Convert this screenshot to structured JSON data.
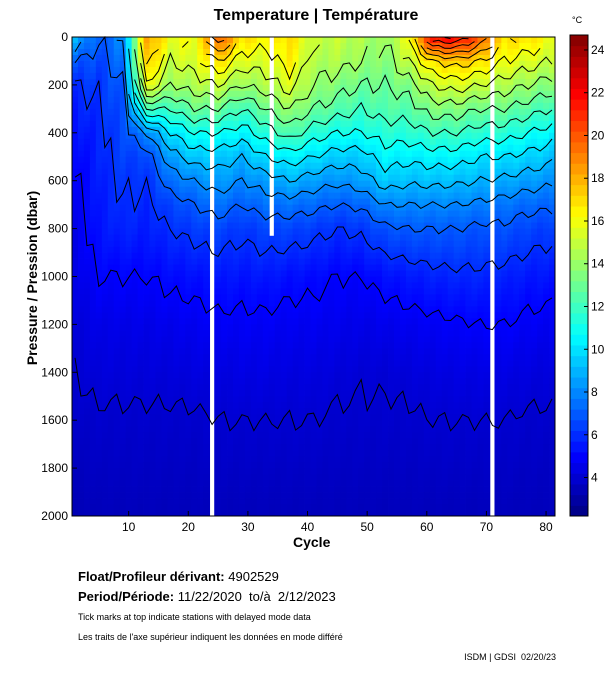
{
  "chart_data": {
    "type": "heatmap",
    "title": "Temperature | Température",
    "xlabel": "Cycle",
    "ylabel": "Pressure / Pression (dbar)",
    "colorbar_label": "°C",
    "xlim": [
      0.5,
      81.5
    ],
    "ylim": [
      2000,
      0
    ],
    "xticks": [
      10,
      20,
      30,
      40,
      50,
      60,
      70,
      80
    ],
    "yticks": [
      0,
      200,
      400,
      600,
      800,
      1000,
      1200,
      1400,
      1600,
      1800,
      2000
    ],
    "colorbar_range": [
      2.2,
      24.7
    ],
    "colorbar_ticks": [
      4,
      6,
      8,
      10,
      12,
      14,
      16,
      18,
      20,
      22,
      24
    ],
    "colormap": "jet",
    "contour_interval": 1,
    "missing_cycles": [
      {
        "cycle": 24,
        "max_depth": 2000
      },
      {
        "cycle": 34,
        "max_depth": 830
      },
      {
        "cycle": 71,
        "max_depth": 2000
      }
    ],
    "depths": [
      0,
      100,
      200,
      300,
      400,
      500,
      600,
      700,
      800,
      1000,
      1200,
      1400,
      1600,
      2000
    ],
    "cycles": [
      1,
      5,
      9,
      13,
      17,
      21,
      25,
      29,
      33,
      37,
      41,
      45,
      49,
      53,
      57,
      61,
      65,
      69,
      73,
      77,
      81
    ],
    "temperature": [
      [
        9,
        7,
        6,
        5.6,
        5.3,
        5,
        4.8,
        4.7,
        4.6,
        4.4,
        4.2,
        4,
        3.8,
        3.4
      ],
      [
        7,
        6.5,
        6.2,
        6,
        5.8,
        5.7,
        5.6,
        5.5,
        5.4,
        5,
        4.5,
        4.2,
        3.9,
        3.5
      ],
      [
        8,
        7.5,
        7,
        6.8,
        6.6,
        6.4,
        6.2,
        6,
        5.8,
        5,
        4.5,
        4.2,
        3.9,
        3.5
      ],
      [
        18.5,
        17.5,
        16,
        12,
        8,
        6.5,
        6,
        5.8,
        5.6,
        5,
        4.5,
        4.2,
        3.9,
        3.5
      ],
      [
        16,
        15,
        14,
        12,
        10,
        8.5,
        7.5,
        6.5,
        6,
        5.2,
        4.6,
        4.2,
        3.9,
        3.5
      ],
      [
        16,
        15.5,
        14.5,
        13,
        11,
        9.5,
        8,
        7,
        6.3,
        5.3,
        4.7,
        4.3,
        3.9,
        3.5
      ],
      [
        20,
        17,
        15,
        13,
        11,
        9.5,
        8.5,
        7.5,
        6.5,
        5.5,
        4.8,
        4.3,
        4,
        3.5
      ],
      [
        17,
        15.5,
        14,
        12,
        10.5,
        9,
        8,
        7,
        6.2,
        5.4,
        4.8,
        4.4,
        4,
        3.5
      ],
      [
        16.5,
        15.5,
        14.5,
        13,
        11.5,
        10,
        8.5,
        7.5,
        6.5,
        5.5,
        4.8,
        4.4,
        4,
        3.5
      ],
      [
        17,
        16.5,
        15.5,
        14,
        12.5,
        10.5,
        9,
        7.5,
        6.5,
        5.3,
        4.7,
        4.3,
        4,
        3.5
      ],
      [
        15,
        14.5,
        14,
        13,
        11.5,
        10,
        8.5,
        7.3,
        6.3,
        5.2,
        4.7,
        4.3,
        4,
        3.5
      ],
      [
        15,
        14.5,
        13.5,
        12.5,
        11,
        9.5,
        8.2,
        7,
        6,
        5,
        4.6,
        4.2,
        3.9,
        3.5
      ],
      [
        14.5,
        14,
        13,
        12,
        11,
        9.5,
        8.5,
        7.2,
        6.2,
        5,
        4.5,
        4.1,
        3.9,
        3.5
      ],
      [
        14,
        13.5,
        13,
        12.5,
        11.5,
        10.5,
        9.5,
        8,
        6.8,
        5.3,
        4.6,
        4.1,
        3.9,
        3.5
      ],
      [
        16,
        15,
        13.5,
        12.5,
        11.5,
        10.3,
        9.2,
        8,
        7,
        5.5,
        4.7,
        4.2,
        3.9,
        3.5
      ],
      [
        22,
        17,
        15,
        13.5,
        12,
        10.5,
        9.3,
        8,
        7,
        5.7,
        4.8,
        4.3,
        4,
        3.5
      ],
      [
        22,
        17.5,
        15.5,
        13.5,
        12,
        10.5,
        9.2,
        8,
        7,
        5.8,
        4.9,
        4.4,
        4,
        3.5
      ],
      [
        20,
        17,
        15,
        13,
        11.5,
        10,
        9,
        7.8,
        6.8,
        5.8,
        5,
        4.4,
        4,
        3.5
      ],
      [
        17,
        16,
        14.5,
        13,
        11.5,
        10,
        8.8,
        7.6,
        6.8,
        5.7,
        5,
        4.4,
        4,
        3.5
      ],
      [
        17,
        15.5,
        14,
        12.5,
        11,
        9.7,
        8.5,
        7.3,
        6.5,
        5.5,
        4.8,
        4.3,
        3.9,
        3.5
      ],
      [
        16,
        15,
        13.5,
        12,
        10.5,
        9.3,
        8.2,
        7.2,
        6.3,
        5.4,
        4.7,
        4.2,
        3.9,
        3.5
      ]
    ]
  },
  "info": {
    "float_label": "Float/Profileur dérivant:",
    "float_value": "4902529",
    "period_label": "Period/Période:",
    "period_value": "11/22/2020  to/à  2/12/2023",
    "note_en": "Tick marks at top indicate stations with delayed mode data",
    "note_fr": "Les traits de l'axe supérieur indiquent les données en mode différé",
    "credit": "ISDM | GDSI  02/20/23"
  }
}
